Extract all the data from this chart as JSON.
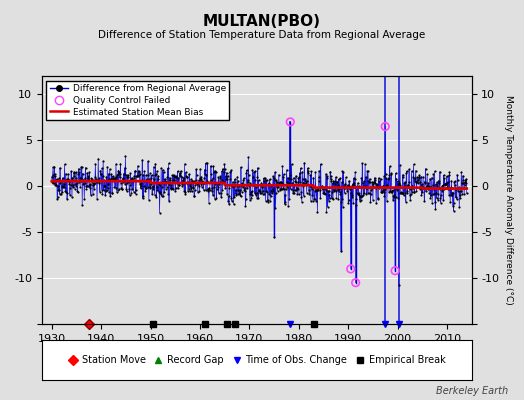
{
  "title": "MULTAN(PBO)",
  "subtitle": "Difference of Station Temperature Data from Regional Average",
  "ylabel": "Monthly Temperature Anomaly Difference (°C)",
  "xlabel_years": [
    1930,
    1940,
    1950,
    1960,
    1970,
    1980,
    1990,
    2000,
    2010
  ],
  "ylim": [
    -15,
    12
  ],
  "yticks": [
    -15,
    -10,
    -5,
    0,
    5,
    10
  ],
  "xlim": [
    1928,
    2015
  ],
  "bg_color": "#e0e0e0",
  "plot_bg_color": "#e0e0e0",
  "line_color": "#0000dd",
  "bias_color": "#dd0000",
  "qc_edge_color": "#ff44ff",
  "marker_color": "#000000",
  "grid_color": "#ffffff",
  "watermark": "Berkeley Earth",
  "station_moves": [
    1937.5
  ],
  "record_gaps": [],
  "obs_changes_tall": [
    1997.5,
    2000.3
  ],
  "obs_changes_short": [
    1978.3
  ],
  "emp_breaks": [
    1950.5,
    1961.0,
    1965.5,
    1967.0,
    1983.0
  ],
  "spike_events": [
    {
      "year": 1978.3,
      "value": 7.0,
      "qc": true
    },
    {
      "year": 1988.5,
      "value": -7.0,
      "qc": false
    },
    {
      "year": 1990.5,
      "value": -9.0,
      "qc": true
    },
    {
      "year": 1991.5,
      "value": -10.5,
      "qc": true
    },
    {
      "year": 1997.5,
      "value": 6.5,
      "qc": true
    },
    {
      "year": 1999.5,
      "value": -9.2,
      "qc": true
    },
    {
      "year": 2000.3,
      "value": -10.8,
      "qc": false
    },
    {
      "year": 1975.0,
      "value": -5.5,
      "qc": false
    }
  ],
  "seed": 42,
  "n_points": 1010
}
